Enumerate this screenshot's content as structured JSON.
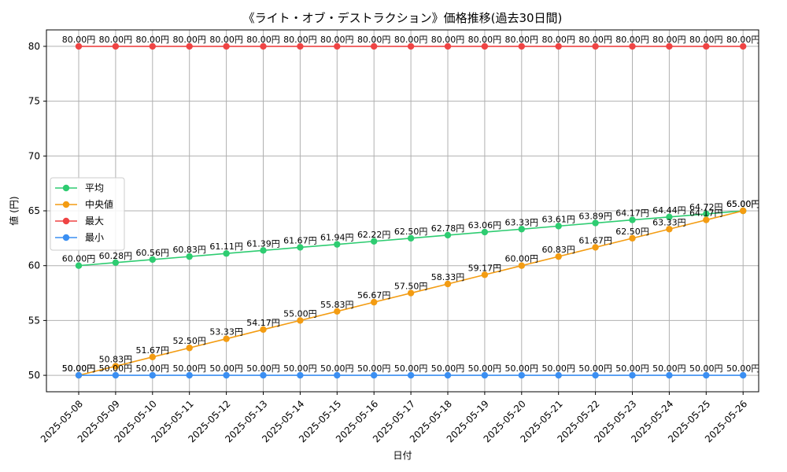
{
  "chart_data": {
    "type": "line",
    "title": "《ライト・オブ・デストラクション》価格推移(過去30日間)",
    "xlabel": "日付",
    "ylabel": "値 (円)",
    "ylim": [
      48.5,
      81.5
    ],
    "yticks": [
      50,
      55,
      60,
      65,
      70,
      75,
      80
    ],
    "grid": true,
    "legend_position": "center-left",
    "value_suffix": "円",
    "categories": [
      "2025-05-08",
      "2025-05-09",
      "2025-05-10",
      "2025-05-11",
      "2025-05-12",
      "2025-05-13",
      "2025-05-14",
      "2025-05-15",
      "2025-05-16",
      "2025-05-17",
      "2025-05-18",
      "2025-05-19",
      "2025-05-20",
      "2025-05-21",
      "2025-05-22",
      "2025-05-23",
      "2025-05-24",
      "2025-05-25",
      "2025-05-26"
    ],
    "series": [
      {
        "name": "平均",
        "color": "#2ecc71",
        "values": [
          60.0,
          60.28,
          60.56,
          60.83,
          61.11,
          61.39,
          61.67,
          61.94,
          62.22,
          62.5,
          62.78,
          63.06,
          63.33,
          63.61,
          63.89,
          64.17,
          64.44,
          64.72,
          65.0
        ]
      },
      {
        "name": "中央値",
        "color": "#f39c12",
        "values": [
          50.0,
          50.83,
          51.67,
          52.5,
          53.33,
          54.17,
          55.0,
          55.83,
          56.67,
          57.5,
          58.33,
          59.17,
          60.0,
          60.83,
          61.67,
          62.5,
          63.33,
          64.17,
          65.0
        ]
      },
      {
        "name": "最大",
        "color": "#ef4444",
        "values": [
          80.0,
          80.0,
          80.0,
          80.0,
          80.0,
          80.0,
          80.0,
          80.0,
          80.0,
          80.0,
          80.0,
          80.0,
          80.0,
          80.0,
          80.0,
          80.0,
          80.0,
          80.0,
          80.0
        ]
      },
      {
        "name": "最小",
        "color": "#3b8ff2",
        "values": [
          50.0,
          50.0,
          50.0,
          50.0,
          50.0,
          50.0,
          50.0,
          50.0,
          50.0,
          50.0,
          50.0,
          50.0,
          50.0,
          50.0,
          50.0,
          50.0,
          50.0,
          50.0,
          50.0
        ]
      }
    ]
  }
}
